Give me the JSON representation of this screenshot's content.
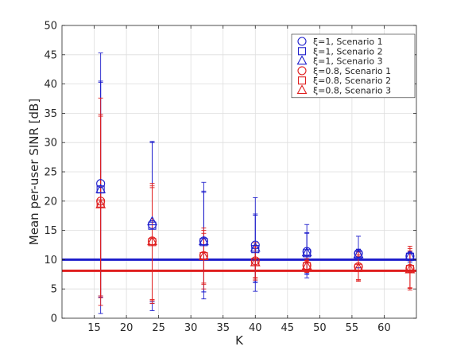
{
  "chart_data": {
    "type": "scatter",
    "title": "",
    "xlabel": "K",
    "ylabel": "Mean per-user SINR [dB]",
    "xlim": [
      10,
      65
    ],
    "ylim": [
      0,
      50
    ],
    "xticks": [
      15,
      20,
      25,
      30,
      35,
      40,
      45,
      50,
      55,
      60
    ],
    "yticks": [
      0,
      5,
      10,
      15,
      20,
      25,
      30,
      35,
      40,
      45,
      50
    ],
    "grid": true,
    "legend_position": "top-right",
    "colors": {
      "blue": "#1f1fcc",
      "red": "#e01f1f"
    },
    "series": [
      {
        "name": "ξ=1, Scenario 1",
        "marker": "circle",
        "color": "#1f1fcc",
        "points": [
          {
            "x": 16,
            "y": 23.0,
            "lo": 0.8,
            "hi": 45.3
          },
          {
            "x": 24,
            "y": 16.0,
            "lo": 2.5,
            "hi": 30.2
          },
          {
            "x": 32,
            "y": 13.2,
            "lo": 3.3,
            "hi": 23.2
          },
          {
            "x": 40,
            "y": 12.5,
            "lo": 4.6,
            "hi": 20.6
          },
          {
            "x": 48,
            "y": 11.4,
            "lo": 6.9,
            "hi": 16.0
          },
          {
            "x": 56,
            "y": 11.1,
            "lo": 8.1,
            "hi": 14.0
          },
          {
            "x": 64,
            "y": 10.6,
            "lo": 9.5,
            "hi": 11.4
          }
        ]
      },
      {
        "name": "ξ=1, Scenario 2",
        "marker": "square",
        "color": "#1f1fcc",
        "points": [
          {
            "x": 16,
            "y": 22.0,
            "lo": 3.6,
            "hi": 40.5
          },
          {
            "x": 24,
            "y": 15.8,
            "lo": 1.3,
            "hi": 30.0
          },
          {
            "x": 32,
            "y": 13.0,
            "lo": 4.5,
            "hi": 21.7
          },
          {
            "x": 40,
            "y": 11.8,
            "lo": 6.1,
            "hi": 17.6
          },
          {
            "x": 48,
            "y": 11.1,
            "lo": 7.6,
            "hi": 14.6
          },
          {
            "x": 56,
            "y": 10.8,
            "lo": 8.6,
            "hi": 11.8
          },
          {
            "x": 64,
            "y": 10.5,
            "lo": 9.8,
            "hi": 11.1
          }
        ]
      },
      {
        "name": "ξ=1, Scenario 3",
        "marker": "triangle",
        "color": "#1f1fcc",
        "points": [
          {
            "x": 16,
            "y": 22.0,
            "lo": 3.8,
            "hi": 40.3
          },
          {
            "x": 24,
            "y": 16.5,
            "lo": 2.8,
            "hi": 30.0
          },
          {
            "x": 32,
            "y": 13.1,
            "lo": 4.5,
            "hi": 21.5
          },
          {
            "x": 40,
            "y": 12.0,
            "lo": 6.2,
            "hi": 17.8
          },
          {
            "x": 48,
            "y": 11.2,
            "lo": 7.5,
            "hi": 14.5
          },
          {
            "x": 56,
            "y": 10.9,
            "lo": 8.6,
            "hi": 11.6
          },
          {
            "x": 64,
            "y": 10.6,
            "lo": 9.8,
            "hi": 11.0
          }
        ]
      },
      {
        "name": "ξ=0.8, Scenario 1",
        "marker": "circle",
        "color": "#e01f1f",
        "points": [
          {
            "x": 16,
            "y": 20.0,
            "lo": 2.2,
            "hi": 37.6
          },
          {
            "x": 24,
            "y": 13.2,
            "lo": 2.5,
            "hi": 23.0
          },
          {
            "x": 32,
            "y": 10.7,
            "lo": 5.0,
            "hi": 15.4
          },
          {
            "x": 40,
            "y": 9.8,
            "lo": 6.5,
            "hi": 12.9
          },
          {
            "x": 48,
            "y": 9.0,
            "lo": 7.8,
            "hi": 10.2
          },
          {
            "x": 56,
            "y": 8.8,
            "lo": 6.3,
            "hi": 11.3
          },
          {
            "x": 64,
            "y": 8.5,
            "lo": 4.8,
            "hi": 12.3
          }
        ]
      },
      {
        "name": "ξ=0.8, Scenario 2",
        "marker": "square",
        "color": "#e01f1f",
        "points": [
          {
            "x": 16,
            "y": 19.6,
            "lo": 3.5,
            "hi": 34.5
          },
          {
            "x": 24,
            "y": 13.0,
            "lo": 3.2,
            "hi": 22.6
          },
          {
            "x": 32,
            "y": 10.6,
            "lo": 5.8,
            "hi": 15.0
          },
          {
            "x": 40,
            "y": 9.6,
            "lo": 6.7,
            "hi": 12.4
          },
          {
            "x": 48,
            "y": 8.9,
            "lo": 7.9,
            "hi": 9.9
          },
          {
            "x": 56,
            "y": 8.6,
            "lo": 6.5,
            "hi": 10.9
          },
          {
            "x": 64,
            "y": 8.4,
            "lo": 5.1,
            "hi": 11.9
          }
        ]
      },
      {
        "name": "ξ=0.8, Scenario 3",
        "marker": "triangle",
        "color": "#e01f1f",
        "points": [
          {
            "x": 16,
            "y": 19.4,
            "lo": 3.8,
            "hi": 34.8
          },
          {
            "x": 24,
            "y": 13.1,
            "lo": 3.0,
            "hi": 22.3
          },
          {
            "x": 32,
            "y": 10.6,
            "lo": 6.0,
            "hi": 14.5
          },
          {
            "x": 40,
            "y": 9.5,
            "lo": 7.0,
            "hi": 12.1
          },
          {
            "x": 48,
            "y": 8.9,
            "lo": 8.0,
            "hi": 9.8
          },
          {
            "x": 56,
            "y": 8.6,
            "lo": 6.6,
            "hi": 10.6
          },
          {
            "x": 64,
            "y": 8.3,
            "lo": 5.2,
            "hi": 11.5
          }
        ]
      }
    ],
    "reference_lines": [
      {
        "y": 10.0,
        "color": "#1f1fcc"
      },
      {
        "y": 8.1,
        "color": "#e01f1f"
      }
    ]
  }
}
